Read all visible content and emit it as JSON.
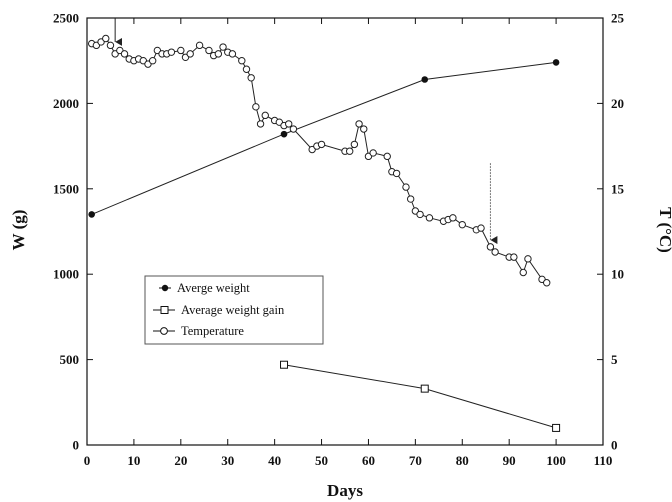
{
  "chart_data": {
    "type": "line",
    "xlabel": "Days",
    "ylabel_left": "W (g)",
    "ylabel_right": "T (°C)",
    "xlim": [
      0,
      110
    ],
    "ylim_left": [
      0,
      2500
    ],
    "ylim_right": [
      0,
      25
    ],
    "x_ticks": [
      0,
      10,
      20,
      30,
      40,
      50,
      60,
      70,
      80,
      90,
      100,
      110
    ],
    "y_ticks_left": [
      0,
      500,
      1000,
      1500,
      2000,
      2500
    ],
    "y_ticks_right": [
      0,
      5,
      10,
      15,
      20,
      25
    ],
    "grid": false,
    "legend_position": "lower-left",
    "series": [
      {
        "name": "Averge weight",
        "axis": "left",
        "marker": "filled-circle",
        "x": [
          1,
          42,
          72,
          100
        ],
        "y": [
          1350,
          1820,
          2140,
          2240
        ]
      },
      {
        "name": "Average weight gain",
        "axis": "left",
        "marker": "open-square",
        "x": [
          42,
          72,
          100
        ],
        "y": [
          470,
          330,
          100
        ]
      },
      {
        "name": "Temperature",
        "axis": "right",
        "marker": "open-circle",
        "x": [
          1,
          2,
          3,
          4,
          5,
          6,
          7,
          8,
          9,
          10,
          11,
          12,
          13,
          14,
          15,
          16,
          17,
          18,
          20,
          21,
          22,
          24,
          26,
          27,
          28,
          29,
          30,
          31,
          33,
          34,
          35,
          36,
          37,
          38,
          40,
          41,
          42,
          43,
          44,
          48,
          49,
          50,
          55,
          56,
          57,
          58,
          59,
          60,
          61,
          64,
          65,
          66,
          68,
          69,
          70,
          71,
          73,
          76,
          77,
          78,
          80,
          83,
          84,
          86,
          87,
          90,
          91,
          93,
          94,
          97,
          98
        ],
        "y": [
          23.5,
          23.4,
          23.6,
          23.8,
          23.4,
          22.9,
          23.1,
          22.9,
          22.6,
          22.5,
          22.6,
          22.5,
          22.3,
          22.5,
          23.1,
          22.9,
          22.9,
          23.0,
          23.1,
          22.7,
          22.9,
          23.4,
          23.1,
          22.8,
          22.9,
          23.3,
          23.0,
          22.9,
          22.5,
          22.0,
          21.5,
          19.8,
          18.8,
          19.3,
          19.0,
          18.9,
          18.7,
          18.8,
          18.5,
          17.3,
          17.5,
          17.6,
          17.2,
          17.2,
          17.6,
          18.8,
          18.5,
          16.9,
          17.1,
          16.9,
          16.0,
          15.9,
          15.1,
          14.4,
          13.7,
          13.5,
          13.3,
          13.1,
          13.2,
          13.3,
          12.9,
          12.6,
          12.7,
          11.6,
          11.3,
          11.0,
          11.0,
          10.1,
          10.9,
          9.7,
          9.5
        ]
      }
    ],
    "annotations": [
      {
        "type": "arrow",
        "x": 6,
        "y_right_from": 25,
        "y_right_to": 23.6
      },
      {
        "type": "arrow",
        "x": 86,
        "y_right_from": 16.5,
        "y_right_to": 12.0
      }
    ]
  }
}
